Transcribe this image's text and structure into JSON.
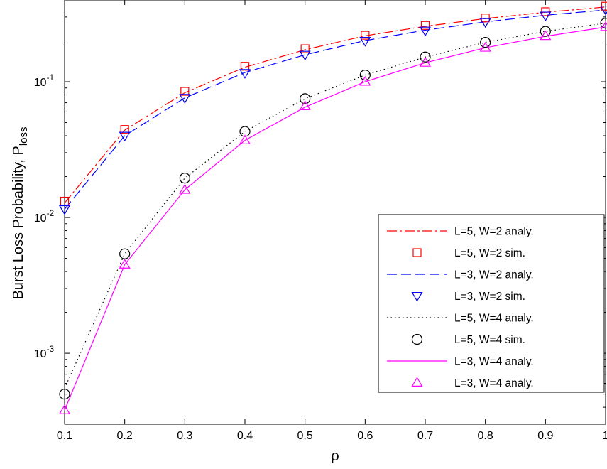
{
  "chart_data": {
    "type": "line",
    "title": "",
    "xlabel": "ρ",
    "ylabel": {
      "main": "Burst Loss Probability, P",
      "subscript": "loss"
    },
    "y_scale": "log",
    "xlim": [
      0.1,
      1.0
    ],
    "ylim": [
      0.0003,
      0.4
    ],
    "grid": false,
    "legend_position": "lower-right",
    "x_tick_labels": [
      "0.1",
      "0.2",
      "0.3",
      "0.4",
      "0.5",
      "0.6",
      "0.7",
      "0.8",
      "0.9",
      "1"
    ],
    "y_ticks": [
      {
        "value": 0.001,
        "base": "10",
        "exp": "-3"
      },
      {
        "value": 0.01,
        "base": "10",
        "exp": "-2"
      },
      {
        "value": 0.1,
        "base": "10",
        "exp": "-1"
      }
    ],
    "x": [
      0.1,
      0.2,
      0.3,
      0.4,
      0.5,
      0.6,
      0.7,
      0.8,
      0.9,
      1.0
    ],
    "series": [
      {
        "name": "L=5, W=2 analy.",
        "color": "#ff0000",
        "line": "dashdot",
        "marker": "none",
        "values": [
          0.0128,
          0.044,
          0.083,
          0.128,
          0.172,
          0.218,
          0.256,
          0.292,
          0.325,
          0.355
        ]
      },
      {
        "name": "L=5, W=2 sim.",
        "color": "#ff0000",
        "line": "none",
        "marker": "square",
        "values": [
          0.0132,
          0.0445,
          0.085,
          0.13,
          0.175,
          0.22,
          0.26,
          0.295,
          0.328,
          0.36
        ]
      },
      {
        "name": "L=3, W=2 analy.",
        "color": "#0000ff",
        "line": "dashed",
        "marker": "none",
        "values": [
          0.0115,
          0.04,
          0.076,
          0.117,
          0.158,
          0.201,
          0.24,
          0.276,
          0.309,
          0.338
        ]
      },
      {
        "name": "L=3, W=2 sim.",
        "color": "#0000ff",
        "line": "none",
        "marker": "triangle-down",
        "values": [
          0.0115,
          0.04,
          0.076,
          0.116,
          0.158,
          0.2,
          0.238,
          0.275,
          0.307,
          0.34
        ]
      },
      {
        "name": "L=5, W=4 analy.",
        "color": "#000000",
        "line": "dotted",
        "marker": "none",
        "values": [
          0.00055,
          0.0054,
          0.0195,
          0.043,
          0.075,
          0.112,
          0.152,
          0.195,
          0.235,
          0.27
        ]
      },
      {
        "name": "L=5, W=4 sim.",
        "color": "#000000",
        "line": "none",
        "marker": "circle",
        "values": [
          0.0005,
          0.0054,
          0.0195,
          0.043,
          0.075,
          0.112,
          0.152,
          0.195,
          0.235,
          0.27
        ]
      },
      {
        "name": "L=3, W=4 analy.",
        "color": "#ff00ff",
        "line": "solid",
        "marker": "none",
        "values": [
          0.00038,
          0.0045,
          0.016,
          0.037,
          0.065,
          0.1,
          0.138,
          0.178,
          0.216,
          0.253
        ]
      },
      {
        "name": "L=3, W=4 analy.",
        "color": "#ff00ff",
        "line": "none",
        "marker": "triangle-up",
        "values": [
          0.00038,
          0.0045,
          0.016,
          0.037,
          0.066,
          0.1,
          0.138,
          0.178,
          0.217,
          0.253
        ]
      }
    ]
  }
}
